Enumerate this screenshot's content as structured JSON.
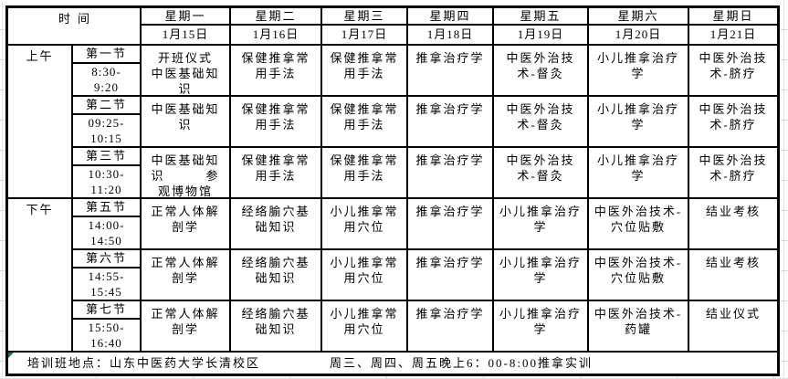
{
  "table": {
    "time_header": "时间",
    "days": [
      {
        "name": "星期一",
        "date": "1月15日"
      },
      {
        "name": "星期二",
        "date": "1月16日"
      },
      {
        "name": "星期三",
        "date": "1月17日"
      },
      {
        "name": "星期四",
        "date": "1月18日"
      },
      {
        "name": "星期五",
        "date": "1月19日"
      },
      {
        "name": "星期六",
        "date": "1月20日"
      },
      {
        "name": "星期日",
        "date": "1月21日"
      }
    ],
    "periods": {
      "morning": "上午",
      "afternoon": "下午"
    },
    "sessions": [
      {
        "label": "第一节",
        "time": "8:30-\n9:20",
        "courses": [
          "开班仪式\n中医基础知识",
          "保健推拿常用手法",
          "保健推拿常用手法",
          "推拿治疗学",
          "中医外治技术-督灸",
          "小儿推拿治疗学",
          "中医外治技术-脐疗"
        ]
      },
      {
        "label": "第二节",
        "time": "09:25-\n10:15",
        "courses": [
          "中医基础知识",
          "保健推拿常用手法",
          "保健推拿常用手法",
          "推拿治疗学",
          "中医外治技术-督灸",
          "小儿推拿治疗学",
          "中医外治技术-脐疗"
        ]
      },
      {
        "label": "第三节",
        "time": "10:30-\n11:20",
        "courses": [
          "中医基础知识　　　参观博物馆",
          "保健推拿常用手法",
          "保健推拿常用手法",
          "推拿治疗学",
          "中医外治技术-督灸",
          "小儿推拿治疗学",
          "中医外治技术-脐疗"
        ]
      },
      {
        "label": "第五节",
        "time": "14:00-\n14:50",
        "courses": [
          "正常人体解剖学",
          "经络腧穴基础知识",
          "小儿推拿常用穴位",
          "推拿治疗学",
          "小儿推拿治疗学",
          "中医外治技术-穴位贴敷",
          "结业考核"
        ]
      },
      {
        "label": "第六节",
        "time": "14:55-\n15:45",
        "courses": [
          "正常人体解剖学",
          "经络腧穴基础知识",
          "小儿推拿常用穴位",
          "推拿治疗学",
          "小儿推拿治疗学",
          "中医外治技术-穴位贴敷",
          "结业考核"
        ]
      },
      {
        "label": "第七节",
        "time": "15:50-\n16:40",
        "courses": [
          "正常人体解剖学",
          "经络腧穴基础知识",
          "小儿推拿常用穴位",
          "推拿治疗学",
          "小儿推拿治疗学",
          "中医外治技术-药罐",
          "结业仪式"
        ]
      }
    ]
  },
  "footer": {
    "location": "培训班地点：山东中医药大学长清校区",
    "note": "周三、周四、周五晚上6：00-8:00推拿实训"
  },
  "colors": {
    "border": "#000000",
    "gridline": "#d9d9d9",
    "flag_green": "#1e7145"
  }
}
